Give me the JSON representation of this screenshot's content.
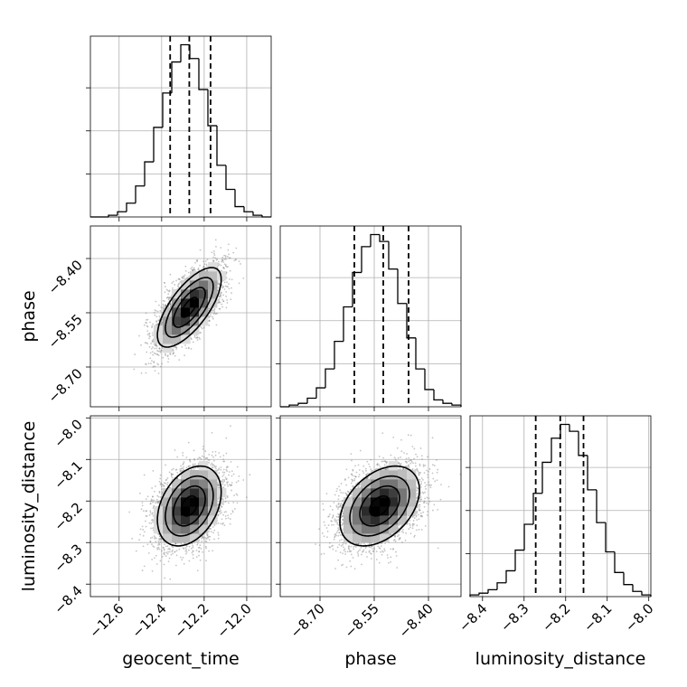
{
  "chart_data": {
    "type": "corner",
    "parameters": [
      {
        "label": "geocent_time",
        "range": [
          -12.735,
          -11.885
        ],
        "ticks": [
          "-12.6",
          "-12.4",
          "-12.2",
          "-12.0"
        ],
        "tick_values": [
          -12.6,
          -12.4,
          -12.2,
          -12.0
        ],
        "quantiles": [
          -12.36,
          -12.27,
          -12.17
        ]
      },
      {
        "label": "phase",
        "range": [
          -8.81,
          -8.31
        ],
        "ticks": [
          "-8.70",
          "-8.55",
          "-8.40"
        ],
        "tick_values": [
          -8.7,
          -8.55,
          -8.4
        ],
        "quantiles": [
          -8.605,
          -8.525,
          -8.455
        ]
      },
      {
        "label": "luminosity_distance",
        "range": [
          -8.43,
          -7.995
        ],
        "ticks": [
          "-8.4",
          "-8.3",
          "-8.2",
          "-8.1",
          "-8.0"
        ],
        "tick_values": [
          -8.4,
          -8.3,
          -8.2,
          -8.1,
          -8.0
        ],
        "quantiles": [
          -8.272,
          -8.213,
          -8.157
        ]
      }
    ],
    "histograms": [
      {
        "parameter": "geocent_time",
        "edges": [
          -12.735,
          -12.6925,
          -12.65,
          -12.6075,
          -12.565,
          -12.5225,
          -12.48,
          -12.4375,
          -12.395,
          -12.3525,
          -12.31,
          -12.2675,
          -12.225,
          -12.1825,
          -12.14,
          -12.0975,
          -12.055,
          -12.0125,
          -11.97,
          -11.9275,
          -11.885
        ],
        "counts": [
          0,
          0,
          1,
          3,
          8,
          18,
          32,
          52,
          72,
          90,
          100,
          92,
          74,
          53,
          30,
          16,
          6,
          3,
          1,
          0
        ]
      },
      {
        "parameter": "phase",
        "edges": [
          -8.81,
          -8.785,
          -8.76,
          -8.735,
          -8.71,
          -8.685,
          -8.66,
          -8.635,
          -8.61,
          -8.585,
          -8.56,
          -8.535,
          -8.51,
          -8.485,
          -8.46,
          -8.435,
          -8.41,
          -8.385,
          -8.36,
          -8.335,
          -8.31
        ],
        "counts": [
          0,
          1,
          2,
          5,
          11,
          22,
          38,
          58,
          78,
          93,
          100,
          96,
          80,
          60,
          40,
          22,
          10,
          4,
          2,
          1
        ]
      },
      {
        "parameter": "luminosity_distance",
        "edges": [
          -8.43,
          -8.40825,
          -8.3865,
          -8.36475,
          -8.343,
          -8.32125,
          -8.2995,
          -8.27775,
          -8.256,
          -8.23425,
          -8.2125,
          -8.19075,
          -8.169,
          -8.14725,
          -8.1255,
          -8.10375,
          -8.082,
          -8.06025,
          -8.0385,
          -8.01675,
          -7.995
        ],
        "counts": [
          1,
          2,
          4,
          8,
          15,
          27,
          42,
          60,
          78,
          92,
          100,
          96,
          82,
          62,
          43,
          26,
          14,
          7,
          3,
          1
        ]
      }
    ],
    "pairs": [
      {
        "x": "geocent_time",
        "y": "phase",
        "mean": [
          -12.27,
          -8.535
        ],
        "sd": [
          0.075,
          0.055
        ],
        "correlation": 0.7,
        "n_samples": 4000
      },
      {
        "x": "geocent_time",
        "y": "luminosity_distance",
        "mean": [
          -12.27,
          -8.212
        ],
        "sd": [
          0.075,
          0.048
        ],
        "correlation": 0.35,
        "n_samples": 4000
      },
      {
        "x": "phase",
        "y": "luminosity_distance",
        "mean": [
          -8.535,
          -8.212
        ],
        "sd": [
          0.055,
          0.048
        ],
        "correlation": 0.4,
        "n_samples": 4000
      }
    ],
    "contour_levels_sigma": [
      0.5,
      1.0,
      1.5,
      2.0
    ],
    "grid": true,
    "colors": {
      "line": "#000000",
      "points": "#7f7f7f",
      "grid": "#b0b0b0"
    }
  }
}
